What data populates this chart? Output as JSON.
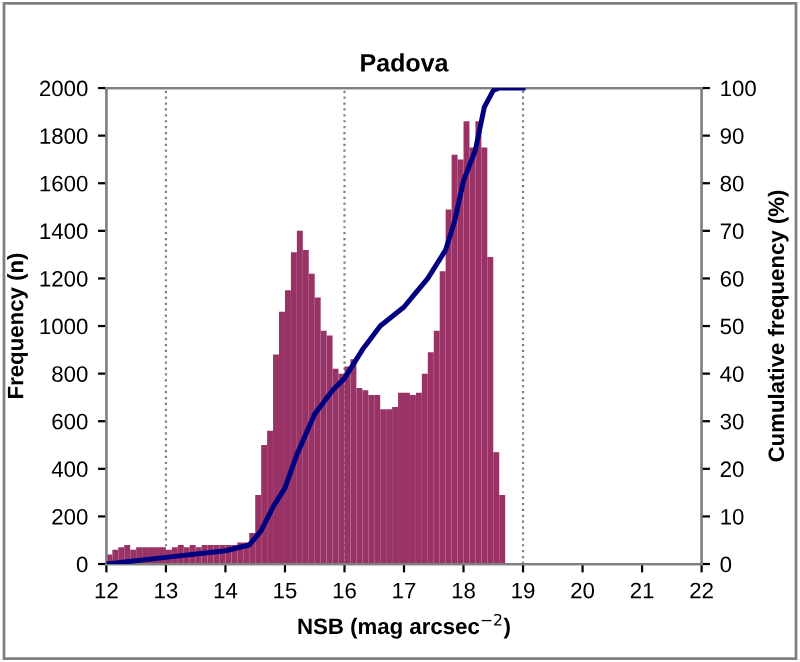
{
  "chart_data": {
    "type": "histogram",
    "title": "Padova",
    "xlabel": "NSB (mag arcsec$^{−2}$)",
    "ylabel": "Frequency (n)",
    "y2label": "Cumulative frequency (%)",
    "xlim": [
      12,
      22
    ],
    "xticks": [
      12,
      13,
      14,
      15,
      16,
      17,
      18,
      19,
      20,
      21,
      22
    ],
    "ylim": [
      0,
      2000
    ],
    "yticks": [
      0,
      200,
      400,
      600,
      800,
      1000,
      1200,
      1400,
      1600,
      1800,
      2000
    ],
    "y2lim": [
      0,
      100
    ],
    "y2ticks": [
      0,
      10,
      20,
      30,
      40,
      50,
      60,
      70,
      80,
      90,
      100
    ],
    "grid": false,
    "legend": false,
    "series": [
      {
        "color": "#993366",
        "bins": [
          12.0,
          12.1,
          12.2,
          12.3,
          12.4,
          12.5,
          12.6,
          12.7,
          12.8,
          12.9,
          13.0,
          13.1,
          13.2,
          13.3,
          13.4,
          13.5,
          13.6,
          13.7,
          13.8,
          13.9,
          14.0,
          14.1,
          14.2,
          14.3,
          14.4,
          14.5,
          14.6,
          14.7,
          14.8,
          14.9,
          15.0,
          15.1,
          15.2,
          15.3,
          15.4,
          15.5,
          15.6,
          15.7,
          15.8,
          15.9,
          16.0,
          16.1,
          16.2,
          16.3,
          16.4,
          16.5,
          16.6,
          16.7,
          16.8,
          16.9,
          17.0,
          17.1,
          17.2,
          17.3,
          17.4,
          17.5,
          17.6,
          17.7,
          17.8,
          17.9,
          18.0,
          18.1,
          18.2,
          18.3,
          18.4,
          18.5,
          18.6,
          18.7
        ],
        "values": [
          40,
          60,
          70,
          80,
          60,
          70,
          70,
          70,
          70,
          70,
          60,
          70,
          80,
          70,
          80,
          70,
          80,
          80,
          80,
          80,
          80,
          80,
          90,
          90,
          130,
          290,
          500,
          560,
          880,
          1060,
          1150,
          1310,
          1400,
          1320,
          1220,
          1120,
          980,
          960,
          820,
          800,
          830,
          860,
          740,
          730,
          710,
          710,
          650,
          650,
          660,
          720,
          720,
          710,
          720,
          800,
          890,
          980,
          1230,
          1490,
          1720,
          1700,
          1860,
          1750,
          1860,
          1750,
          1290,
          470,
          290
        ]
      },
      {
        "type": "line",
        "axis": "y2",
        "color": "#000080",
        "line_style": "solid",
        "marker": "none",
        "x": [
          12.0,
          13.0,
          14.0,
          14.4,
          14.6,
          14.8,
          15.0,
          15.2,
          15.5,
          15.8,
          16.0,
          16.3,
          16.6,
          17.0,
          17.2,
          17.4,
          17.7,
          17.85,
          18.0,
          18.2,
          18.35,
          18.5,
          18.6,
          19.0
        ],
        "values": [
          0,
          1.4,
          2.8,
          4,
          7,
          12,
          16,
          23,
          31.5,
          36.5,
          39,
          45,
          50,
          54,
          57,
          60,
          66,
          72,
          80.5,
          87,
          96,
          99.5,
          100,
          100
        ]
      }
    ],
    "ref_lines": [
      {
        "axis": "x",
        "value": 13,
        "color": "#808080",
        "line_style": "dotted"
      },
      {
        "axis": "x",
        "value": 16,
        "color": "#808080",
        "line_style": "dotted"
      },
      {
        "axis": "x",
        "value": 19,
        "color": "#808080",
        "line_style": "dotted"
      }
    ]
  }
}
